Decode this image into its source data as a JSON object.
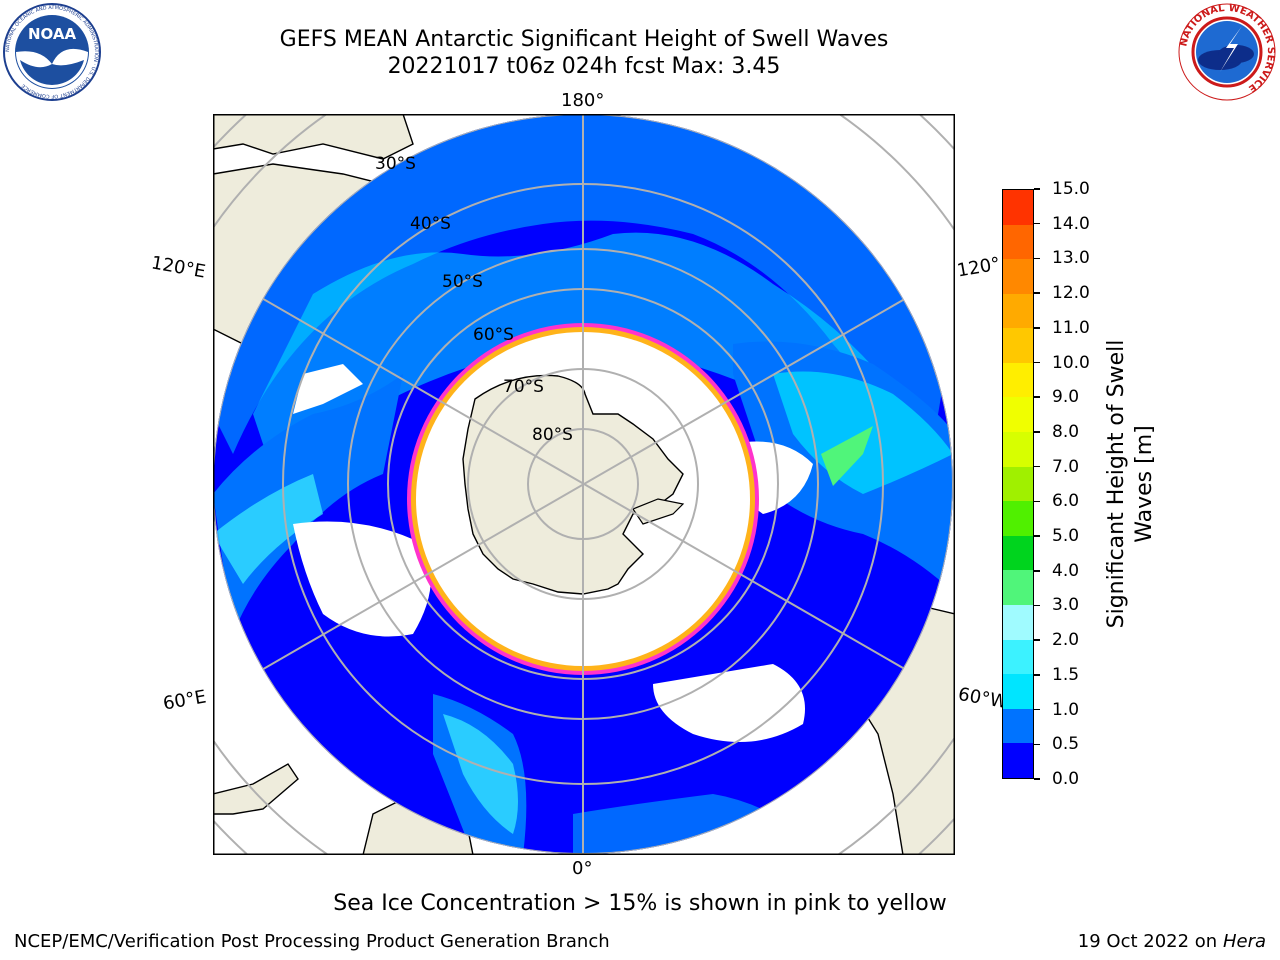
{
  "header": {
    "title_line1": "GEFS MEAN Antarctic Significant Height of Swell Waves",
    "title_line2": "20221017 t06z 024h fcst   Max: 3.45"
  },
  "logos": {
    "left": {
      "name": "noaa-logo",
      "text": "NOAA",
      "ring_text": "NATIONAL OCEANIC AND ATMOSPHERIC ADMINISTRATION · U.S. DEPARTMENT OF COMMERCE"
    },
    "right": {
      "name": "nws-logo",
      "ring_text": "NATIONAL WEATHER SERVICE"
    }
  },
  "map": {
    "projection": "South polar stereographic",
    "lon_labels": {
      "top": "180°",
      "bottom": "0°",
      "left_upper": "120°E",
      "left_lower": "60°E",
      "right_upper": "120°",
      "right_lower": "60°W"
    },
    "lat_labels": [
      "30°S",
      "40°S",
      "50°S",
      "60°S",
      "70°S",
      "80°S"
    ],
    "colors": {
      "land": "#eeecdc",
      "ocean_low": "#0000ff",
      "ocean_mid": "#0073ff",
      "ocean_high": "#00eeff",
      "ice_edge": "#ff33cc",
      "ice_inner": "#ffb31a",
      "grid": "#b0b0b0"
    }
  },
  "colorbar": {
    "label_line1": "Significant Height of Swell",
    "label_line2": "Waves [m]",
    "ticks": [
      "0.0",
      "0.5",
      "1.0",
      "1.5",
      "2.0",
      "3.0",
      "4.0",
      "5.0",
      "6.0",
      "7.0",
      "8.0",
      "9.0",
      "10.0",
      "11.0",
      "12.0",
      "13.0",
      "14.0",
      "15.0"
    ],
    "colors": [
      "#0000ff",
      "#0073ff",
      "#00e5ff",
      "#3cf2ff",
      "#a0fbff",
      "#50f57a",
      "#00d41e",
      "#50f000",
      "#a0f000",
      "#d7ff00",
      "#f0ff00",
      "#ffee00",
      "#ffc800",
      "#ffaa00",
      "#ff8800",
      "#ff6600",
      "#ff3300",
      "#ff0000"
    ]
  },
  "note": "Sea Ice Concentration > 15% is shown in pink to yellow",
  "footer": {
    "left": "NCEP/EMC/Verification Post Processing Product Generation Branch",
    "right_prefix": "19 Oct 2022 on ",
    "right_italic": "Hera"
  }
}
